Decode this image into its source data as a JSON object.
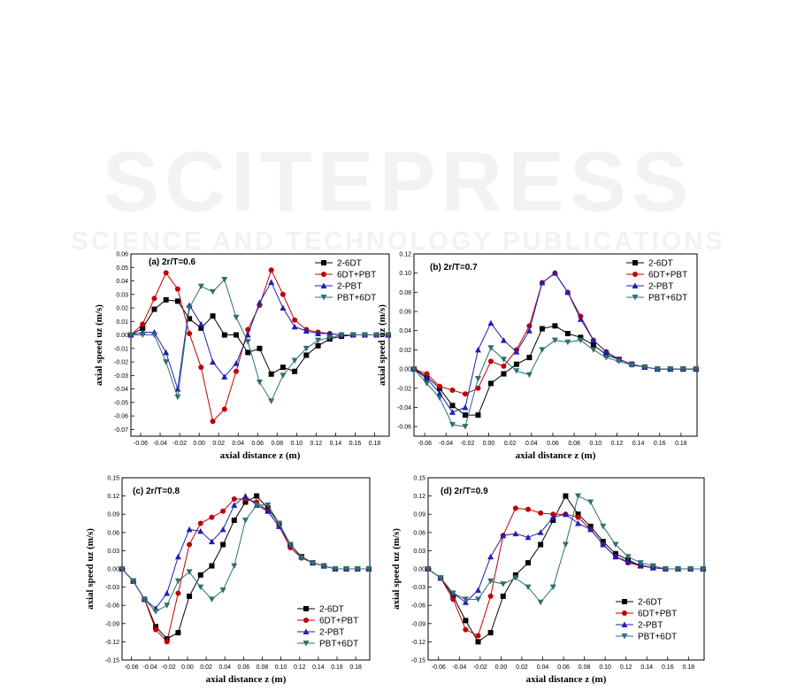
{
  "watermark": {
    "main": "SCITEPRESS",
    "sub": "SCIENCE AND TECHNOLOGY PUBLICATIONS"
  },
  "series_styles": [
    {
      "name": "2-6DT",
      "color": "#000000",
      "marker": "square"
    },
    {
      "name": "6DT+PBT",
      "color": "#c00000",
      "marker": "circle"
    },
    {
      "name": "2-PBT",
      "color": "#1f1fb4",
      "marker": "triangle-up"
    },
    {
      "name": "PBT+6DT",
      "color": "#2f6f6f",
      "marker": "triangle-down"
    }
  ],
  "chart_data": [
    {
      "type": "line",
      "title": "(a)  2r/T=0.6",
      "xlabel": "axial distance z (m)",
      "ylabel": "axial speed uz (m/s)",
      "xlim": [
        -0.07,
        0.195
      ],
      "ylim": [
        -0.075,
        0.06
      ],
      "xticks": [
        -0.06,
        -0.04,
        -0.02,
        0.0,
        0.02,
        0.04,
        0.06,
        0.08,
        0.1,
        0.12,
        0.14,
        0.16,
        0.18
      ],
      "xtick_labels": [
        "-0.06",
        "-0.04",
        "-0.02",
        "0.00",
        "0.02",
        "0.04",
        "0.06",
        "0.08",
        "0.10",
        "0.12",
        "0.14",
        "0.16",
        "0.18"
      ],
      "yticks": [
        -0.07,
        -0.06,
        -0.05,
        -0.04,
        -0.03,
        -0.02,
        -0.01,
        0.0,
        0.01,
        0.02,
        0.03,
        0.04,
        0.05,
        0.06
      ],
      "ytick_labels": [
        "-0.07",
        "-0.06",
        "-0.05",
        "-0.04",
        "-0.03",
        "-0.02",
        "-0.01",
        "0.00",
        "0.01",
        "0.02",
        "0.03",
        "0.04",
        "0.05",
        "0.06"
      ],
      "legend": "top-right",
      "x": [
        -0.07,
        -0.058,
        -0.046,
        -0.034,
        -0.022,
        -0.01,
        0.002,
        0.014,
        0.026,
        0.038,
        0.05,
        0.062,
        0.074,
        0.086,
        0.098,
        0.11,
        0.122,
        0.134,
        0.146,
        0.158,
        0.17,
        0.182,
        0.194
      ],
      "series": [
        {
          "name": "2-6DT",
          "values": [
            0,
            0.005,
            0.019,
            0.026,
            0.025,
            0.012,
            0.005,
            0.014,
            0,
            0,
            -0.013,
            -0.01,
            -0.029,
            -0.024,
            -0.027,
            -0.015,
            -0.008,
            -0.003,
            -0.001,
            0,
            0,
            0,
            0
          ]
        },
        {
          "name": "6DT+PBT",
          "values": [
            0,
            0.008,
            0.027,
            0.046,
            0.034,
            0.001,
            -0.024,
            -0.064,
            -0.055,
            -0.027,
            0.004,
            0.022,
            0.048,
            0.03,
            0.011,
            0.004,
            0.002,
            0.001,
            0,
            0,
            0,
            0,
            0
          ]
        },
        {
          "name": "2-PBT",
          "values": [
            0,
            0.002,
            0.002,
            -0.013,
            -0.04,
            0.022,
            0.008,
            -0.02,
            -0.031,
            -0.021,
            0.0,
            0.024,
            0.039,
            0.02,
            0.006,
            0.003,
            0.001,
            0.001,
            0,
            0,
            0,
            0,
            0
          ]
        },
        {
          "name": "PBT+6DT",
          "values": [
            0,
            0,
            0,
            -0.02,
            -0.046,
            0.02,
            0.036,
            0.032,
            0.041,
            0.013,
            -0.005,
            -0.035,
            -0.049,
            -0.03,
            -0.019,
            -0.01,
            -0.004,
            -0.002,
            0,
            0,
            0,
            0,
            0
          ]
        }
      ]
    },
    {
      "type": "line",
      "title": "(b)  2r/T=0.7",
      "xlabel": "axial distance z (m)",
      "ylabel": "axial speed uz (m/s)",
      "xlim": [
        -0.07,
        0.195
      ],
      "ylim": [
        -0.07,
        0.12
      ],
      "xticks": [
        -0.06,
        -0.04,
        -0.02,
        0.0,
        0.02,
        0.04,
        0.06,
        0.08,
        0.1,
        0.12,
        0.14,
        0.16,
        0.18
      ],
      "xtick_labels": [
        "-0.06",
        "-0.04",
        "-0.02",
        "0.00",
        "0.02",
        "0.04",
        "0.06",
        "0.08",
        "0.10",
        "0.12",
        "0.14",
        "0.16",
        "0.18"
      ],
      "yticks": [
        -0.06,
        -0.04,
        -0.02,
        0.0,
        0.02,
        0.04,
        0.06,
        0.08,
        0.1,
        0.12
      ],
      "ytick_labels": [
        "-0.06",
        "-0.04",
        "-0.02",
        "0.00",
        "0.02",
        "0.04",
        "0.06",
        "0.08",
        "0.10",
        "0.12"
      ],
      "legend": "top-right",
      "x": [
        -0.07,
        -0.058,
        -0.046,
        -0.034,
        -0.022,
        -0.01,
        0.002,
        0.014,
        0.026,
        0.038,
        0.05,
        0.062,
        0.074,
        0.086,
        0.098,
        0.11,
        0.122,
        0.134,
        0.146,
        0.158,
        0.17,
        0.182,
        0.194
      ],
      "series": [
        {
          "name": "2-6DT",
          "values": [
            0,
            -0.008,
            -0.02,
            -0.038,
            -0.048,
            -0.048,
            -0.015,
            -0.005,
            0.005,
            0.012,
            0.042,
            0.045,
            0.037,
            0.033,
            0.025,
            0.015,
            0.01,
            0.005,
            0.002,
            0,
            0,
            0,
            0
          ]
        },
        {
          "name": "6DT+PBT",
          "values": [
            0,
            -0.005,
            -0.018,
            -0.022,
            -0.026,
            -0.02,
            0.008,
            0.003,
            0.02,
            0.045,
            0.09,
            0.1,
            0.08,
            0.055,
            0.03,
            0.018,
            0.01,
            0.005,
            0.002,
            0,
            0,
            0,
            0
          ]
        },
        {
          "name": "2-PBT",
          "values": [
            0,
            -0.01,
            -0.025,
            -0.045,
            -0.04,
            0.02,
            0.048,
            0.03,
            0.018,
            0.04,
            0.09,
            0.1,
            0.08,
            0.052,
            0.03,
            0.018,
            0.01,
            0.005,
            0.002,
            0,
            0,
            0,
            0
          ]
        },
        {
          "name": "PBT+6DT",
          "values": [
            0,
            -0.015,
            -0.03,
            -0.058,
            -0.06,
            -0.01,
            0.022,
            0.01,
            -0.002,
            -0.006,
            0.02,
            0.03,
            0.028,
            0.03,
            0.02,
            0.012,
            0.008,
            0.004,
            0.002,
            0,
            0,
            0,
            0
          ]
        }
      ]
    },
    {
      "type": "line",
      "title": "(c)  2r/T=0.8",
      "xlabel": "axial distance z (m)",
      "ylabel": "axial speed uz (m/s)",
      "xlim": [
        -0.07,
        0.195
      ],
      "ylim": [
        -0.15,
        0.15
      ],
      "xticks": [
        -0.06,
        -0.04,
        -0.02,
        0.0,
        0.02,
        0.04,
        0.06,
        0.08,
        0.1,
        0.12,
        0.14,
        0.16,
        0.18
      ],
      "xtick_labels": [
        "-0.06",
        "-0.04",
        "-0.02",
        "0.00",
        "0.02",
        "0.04",
        "0.06",
        "0.08",
        "0.10",
        "0.12",
        "0.14",
        "0.16",
        "0.18"
      ],
      "yticks": [
        -0.15,
        -0.12,
        -0.09,
        -0.06,
        -0.03,
        0.0,
        0.03,
        0.06,
        0.09,
        0.12,
        0.15
      ],
      "ytick_labels": [
        "-0.15",
        "-0.12",
        "-0.09",
        "-0.06",
        "-0.03",
        "0.00",
        "0.03",
        "0.06",
        "0.09",
        "0.12",
        "0.15"
      ],
      "legend": "bottom-right",
      "x": [
        -0.07,
        -0.058,
        -0.046,
        -0.034,
        -0.022,
        -0.01,
        0.002,
        0.014,
        0.026,
        0.038,
        0.05,
        0.062,
        0.074,
        0.086,
        0.098,
        0.11,
        0.122,
        0.134,
        0.146,
        0.158,
        0.17,
        0.182,
        0.194
      ],
      "series": [
        {
          "name": "2-6DT",
          "values": [
            0,
            -0.02,
            -0.05,
            -0.095,
            -0.115,
            -0.105,
            -0.045,
            -0.01,
            0.005,
            0.04,
            0.08,
            0.11,
            0.12,
            0.1,
            0.075,
            0.04,
            0.02,
            0.01,
            0.005,
            0,
            0,
            0,
            0
          ]
        },
        {
          "name": "6DT+PBT",
          "values": [
            0,
            -0.02,
            -0.05,
            -0.1,
            -0.12,
            -0.04,
            0.04,
            0.075,
            0.085,
            0.095,
            0.115,
            0.115,
            0.11,
            0.095,
            0.07,
            0.035,
            0.018,
            0.01,
            0.005,
            0,
            0,
            0,
            0
          ]
        },
        {
          "name": "2-PBT",
          "values": [
            0,
            -0.02,
            -0.05,
            -0.065,
            -0.04,
            0.02,
            0.065,
            0.062,
            0.045,
            0.065,
            0.105,
            0.12,
            0.105,
            0.095,
            0.07,
            0.04,
            0.02,
            0.01,
            0.005,
            0,
            0,
            0,
            0
          ]
        },
        {
          "name": "PBT+6DT",
          "values": [
            0,
            -0.02,
            -0.05,
            -0.07,
            -0.06,
            -0.02,
            -0.005,
            -0.03,
            -0.05,
            -0.035,
            0.005,
            0.08,
            0.105,
            0.105,
            0.075,
            0.04,
            0.018,
            0.01,
            0.005,
            0,
            0,
            0,
            0
          ]
        }
      ]
    },
    {
      "type": "line",
      "title": "(d)  2r/T=0.9",
      "xlabel": "axial distance z (m)",
      "ylabel": "axial speed uz (m/s)",
      "xlim": [
        -0.07,
        0.195
      ],
      "ylim": [
        -0.15,
        0.15
      ],
      "xticks": [
        -0.06,
        -0.04,
        -0.02,
        0.0,
        0.02,
        0.04,
        0.06,
        0.08,
        0.1,
        0.12,
        0.14,
        0.16,
        0.18
      ],
      "xtick_labels": [
        "-0.06",
        "-0.04",
        "-0.02",
        "0.00",
        "0.02",
        "0.04",
        "0.06",
        "0.08",
        "0.10",
        "0.12",
        "0.14",
        "0.16",
        "0.18"
      ],
      "yticks": [
        -0.15,
        -0.12,
        -0.09,
        -0.06,
        -0.03,
        0.0,
        0.03,
        0.06,
        0.09,
        0.12,
        0.15
      ],
      "ytick_labels": [
        "-0.15",
        "-0.12",
        "-0.09",
        "-0.06",
        "-0.03",
        "0.00",
        "0.03",
        "0.06",
        "0.09",
        "0.12",
        "0.15"
      ],
      "legend": "bottom-right",
      "x": [
        -0.07,
        -0.058,
        -0.046,
        -0.034,
        -0.022,
        -0.01,
        0.002,
        0.014,
        0.026,
        0.038,
        0.05,
        0.062,
        0.074,
        0.086,
        0.098,
        0.11,
        0.122,
        0.134,
        0.146,
        0.158,
        0.17,
        0.182,
        0.194
      ],
      "series": [
        {
          "name": "2-6DT",
          "values": [
            0,
            -0.015,
            -0.045,
            -0.085,
            -0.12,
            -0.105,
            -0.045,
            -0.01,
            0.01,
            0.04,
            0.08,
            0.12,
            0.09,
            0.07,
            0.045,
            0.025,
            0.015,
            0.005,
            0.002,
            0,
            0,
            0,
            0
          ]
        },
        {
          "name": "6DT+PBT",
          "values": [
            0,
            -0.015,
            -0.05,
            -0.1,
            -0.11,
            -0.045,
            0.055,
            0.1,
            0.098,
            0.092,
            0.09,
            0.09,
            0.085,
            0.065,
            0.04,
            0.02,
            0.01,
            0.005,
            0.002,
            0,
            0,
            0,
            0
          ]
        },
        {
          "name": "2-PBT",
          "values": [
            0,
            -0.015,
            -0.04,
            -0.055,
            -0.035,
            0.02,
            0.055,
            0.058,
            0.052,
            0.06,
            0.085,
            0.09,
            0.075,
            0.065,
            0.04,
            0.02,
            0.012,
            0.006,
            0.002,
            0,
            0,
            0,
            0
          ]
        },
        {
          "name": "PBT+6DT",
          "values": [
            0,
            -0.015,
            -0.04,
            -0.05,
            -0.05,
            -0.02,
            -0.025,
            -0.015,
            -0.03,
            -0.055,
            -0.03,
            0.04,
            0.12,
            0.11,
            0.07,
            0.04,
            0.02,
            0.01,
            0.005,
            0,
            0,
            0,
            0
          ]
        }
      ]
    }
  ]
}
